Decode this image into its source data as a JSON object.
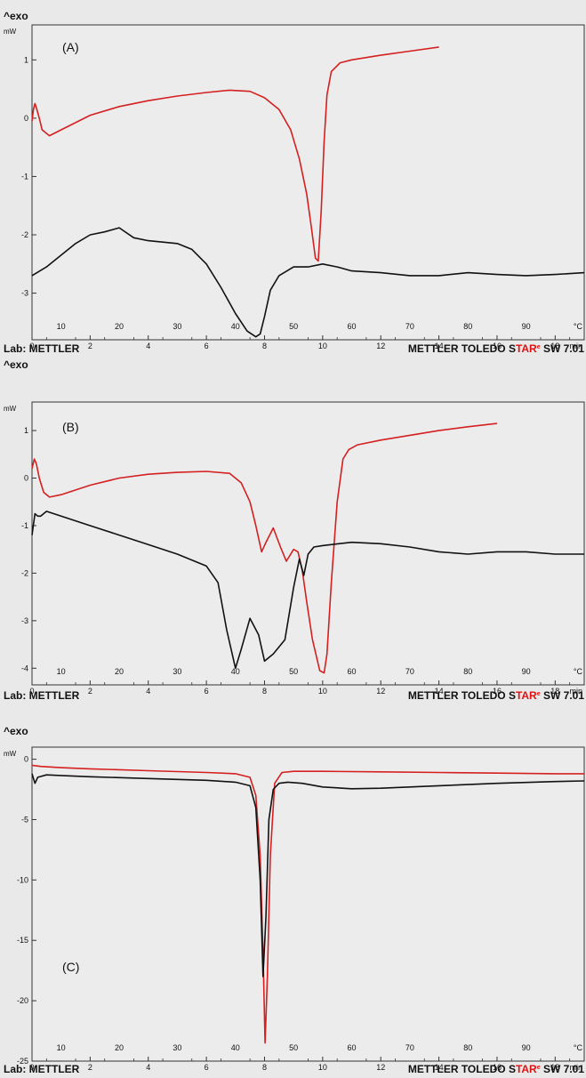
{
  "colors": {
    "background": "#e9e9e9",
    "frame": "#333333",
    "sample_red": "#d42020",
    "sample_black": "#111111"
  },
  "footer": {
    "lab": "Lab: METTLER",
    "software_prefix": "METTLER TOLEDO S",
    "software_mark": "TAR",
    "software_reg": "e",
    "software_suffix": " SW 7.01"
  },
  "chart_data": [
    {
      "type": "line",
      "panel_label": "(A)",
      "exo_label": "^exo",
      "y_unit": "mW",
      "x_unit": "min",
      "t_unit": "°C",
      "xlim": [
        0,
        19
      ],
      "ylim": [
        -3.8,
        1.6
      ],
      "y_ticks": [
        1,
        0,
        -1,
        -2,
        -3
      ],
      "x_ticks": [
        0,
        2,
        4,
        6,
        8,
        10,
        12,
        14,
        16,
        18
      ],
      "temp_ticks": [
        {
          "t": 10,
          "x": 1.0
        },
        {
          "t": 20,
          "x": 3.0
        },
        {
          "t": 30,
          "x": 5.0
        },
        {
          "t": 40,
          "x": 7.0
        },
        {
          "t": 50,
          "x": 9.0
        },
        {
          "t": 60,
          "x": 11.0
        },
        {
          "t": 70,
          "x": 13.0
        },
        {
          "t": 80,
          "x": 15.0
        },
        {
          "t": 90,
          "x": 17.0
        }
      ],
      "series": [
        {
          "color": "#d42020",
          "x": [
            0,
            0.05,
            0.1,
            0.15,
            0.25,
            0.35,
            0.6,
            1,
            2,
            3,
            4,
            5,
            6,
            6.8,
            7.5,
            8,
            8.5,
            8.9,
            9.2,
            9.45,
            9.62,
            9.75,
            9.85,
            9.95,
            10.05,
            10.15,
            10.3,
            10.6,
            11,
            12,
            13,
            14
          ],
          "y": [
            -0.05,
            0.15,
            0.25,
            0.18,
            0,
            -0.2,
            -0.3,
            -0.2,
            0.05,
            0.2,
            0.3,
            0.38,
            0.44,
            0.48,
            0.46,
            0.35,
            0.15,
            -0.2,
            -0.7,
            -1.3,
            -1.9,
            -2.4,
            -2.45,
            -1.6,
            -0.4,
            0.4,
            0.8,
            0.95,
            1.0,
            1.08,
            1.15,
            1.22
          ]
        },
        {
          "color": "#111111",
          "x": [
            0,
            0.5,
            1,
            1.5,
            2,
            2.5,
            3,
            3.5,
            4,
            5,
            5.5,
            6,
            6.5,
            7,
            7.4,
            7.7,
            7.85,
            8,
            8.2,
            8.5,
            9,
            9.5,
            10,
            10.5,
            11,
            12,
            13,
            14,
            15,
            16,
            17,
            18,
            19
          ],
          "y": [
            -2.7,
            -2.55,
            -2.35,
            -2.15,
            -2.0,
            -1.95,
            -1.88,
            -2.05,
            -2.1,
            -2.15,
            -2.25,
            -2.5,
            -2.9,
            -3.35,
            -3.65,
            -3.75,
            -3.7,
            -3.4,
            -2.95,
            -2.7,
            -2.55,
            -2.55,
            -2.5,
            -2.55,
            -2.62,
            -2.65,
            -2.7,
            -2.7,
            -2.65,
            -2.68,
            -2.7,
            -2.68,
            -2.65
          ]
        }
      ]
    },
    {
      "type": "line",
      "panel_label": "(B)",
      "exo_label": "^exo",
      "y_unit": "mW",
      "x_unit": "min",
      "t_unit": "°C",
      "xlim": [
        0,
        19
      ],
      "ylim": [
        -4.35,
        1.6
      ],
      "y_ticks": [
        1,
        0,
        -1,
        -2,
        -3,
        -4
      ],
      "x_ticks": [
        0,
        2,
        4,
        6,
        8,
        10,
        12,
        14,
        16,
        18
      ],
      "temp_ticks": [
        {
          "t": 10,
          "x": 1.0
        },
        {
          "t": 20,
          "x": 3.0
        },
        {
          "t": 30,
          "x": 5.0
        },
        {
          "t": 40,
          "x": 7.0
        },
        {
          "t": 50,
          "x": 9.0
        },
        {
          "t": 60,
          "x": 11.0
        },
        {
          "t": 70,
          "x": 13.0
        },
        {
          "t": 80,
          "x": 15.0
        },
        {
          "t": 90,
          "x": 17.0
        }
      ],
      "series": [
        {
          "color": "#d42020",
          "x": [
            0,
            0.08,
            0.15,
            0.25,
            0.4,
            0.6,
            1,
            2,
            3,
            4,
            5,
            6,
            6.8,
            7.2,
            7.5,
            7.7,
            7.9,
            8.05,
            8.3,
            8.55,
            8.75,
            9.0,
            9.15,
            9.3,
            9.45,
            9.65,
            9.9,
            10.05,
            10.15,
            10.3,
            10.5,
            10.7,
            10.9,
            11.2,
            12,
            13,
            14,
            15,
            16
          ],
          "y": [
            0.2,
            0.4,
            0.3,
            0,
            -0.3,
            -0.4,
            -0.35,
            -0.15,
            0.0,
            0.08,
            0.12,
            0.14,
            0.1,
            -0.1,
            -0.5,
            -1.0,
            -1.55,
            -1.35,
            -1.05,
            -1.45,
            -1.75,
            -1.5,
            -1.55,
            -1.95,
            -2.6,
            -3.4,
            -4.05,
            -4.1,
            -3.7,
            -2.2,
            -0.5,
            0.4,
            0.6,
            0.7,
            0.8,
            0.9,
            1.0,
            1.08,
            1.15
          ]
        },
        {
          "color": "#111111",
          "x": [
            0,
            0.1,
            0.2,
            0.3,
            0.5,
            1,
            2,
            3,
            4,
            5,
            6,
            6.4,
            6.7,
            7.0,
            7.2,
            7.5,
            7.8,
            8.0,
            8.3,
            8.7,
            9.0,
            9.2,
            9.35,
            9.5,
            9.7,
            10,
            11,
            12,
            13,
            14,
            15,
            16,
            17,
            18,
            19
          ],
          "y": [
            -1.2,
            -0.75,
            -0.8,
            -0.8,
            -0.7,
            -0.8,
            -1.0,
            -1.2,
            -1.4,
            -1.6,
            -1.85,
            -2.2,
            -3.2,
            -4.0,
            -3.6,
            -2.95,
            -3.3,
            -3.85,
            -3.7,
            -3.4,
            -2.3,
            -1.7,
            -2.05,
            -1.6,
            -1.45,
            -1.42,
            -1.35,
            -1.38,
            -1.45,
            -1.55,
            -1.6,
            -1.55,
            -1.55,
            -1.6,
            -1.6
          ]
        }
      ]
    },
    {
      "type": "line",
      "panel_label": "(C)",
      "exo_label": "^exo",
      "y_unit": "mW",
      "x_unit": "min",
      "t_unit": "°C",
      "xlim": [
        0,
        19
      ],
      "ylim": [
        -25,
        1
      ],
      "y_ticks": [
        0,
        -5,
        -10,
        -15,
        -20,
        -25
      ],
      "x_ticks": [
        0,
        2,
        4,
        6,
        8,
        10,
        12,
        14,
        16,
        18
      ],
      "temp_ticks": [
        {
          "t": 10,
          "x": 1.0
        },
        {
          "t": 20,
          "x": 3.0
        },
        {
          "t": 30,
          "x": 5.0
        },
        {
          "t": 40,
          "x": 7.0
        },
        {
          "t": 50,
          "x": 9.0
        },
        {
          "t": 60,
          "x": 11.0
        },
        {
          "t": 70,
          "x": 13.0
        },
        {
          "t": 80,
          "x": 15.0
        },
        {
          "t": 90,
          "x": 17.0
        }
      ],
      "series": [
        {
          "color": "#d42020",
          "x": [
            0,
            0.3,
            1,
            2,
            4,
            6,
            7,
            7.5,
            7.7,
            7.85,
            7.95,
            8.02,
            8.1,
            8.2,
            8.35,
            8.6,
            9,
            10,
            12,
            14,
            16,
            18,
            19
          ],
          "y": [
            -0.5,
            -0.6,
            -0.7,
            -0.8,
            -0.95,
            -1.1,
            -1.2,
            -1.5,
            -3,
            -8,
            -16,
            -23.5,
            -18,
            -8,
            -2,
            -1.1,
            -1.0,
            -1.0,
            -1.05,
            -1.1,
            -1.15,
            -1.2,
            -1.2
          ]
        },
        {
          "color": "#111111",
          "x": [
            0,
            0.1,
            0.2,
            0.5,
            1,
            2,
            4,
            6,
            7,
            7.5,
            7.7,
            7.85,
            7.95,
            8.05,
            8.15,
            8.3,
            8.5,
            8.8,
            9.3,
            10,
            11,
            12,
            14,
            16,
            18,
            19
          ],
          "y": [
            -1.2,
            -2.0,
            -1.5,
            -1.3,
            -1.35,
            -1.45,
            -1.6,
            -1.75,
            -1.9,
            -2.2,
            -4,
            -10,
            -18,
            -13,
            -5,
            -2.5,
            -2.0,
            -1.9,
            -2.0,
            -2.3,
            -2.45,
            -2.4,
            -2.2,
            -2.0,
            -1.85,
            -1.8
          ]
        }
      ]
    }
  ]
}
